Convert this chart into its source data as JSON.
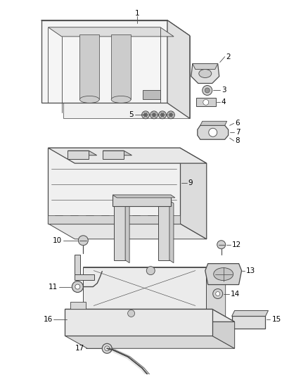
{
  "bg_color": "#ffffff",
  "line_color": "#4a4a4a",
  "lw": 0.9,
  "figsize": [
    4.38,
    5.33
  ],
  "dpi": 100
}
